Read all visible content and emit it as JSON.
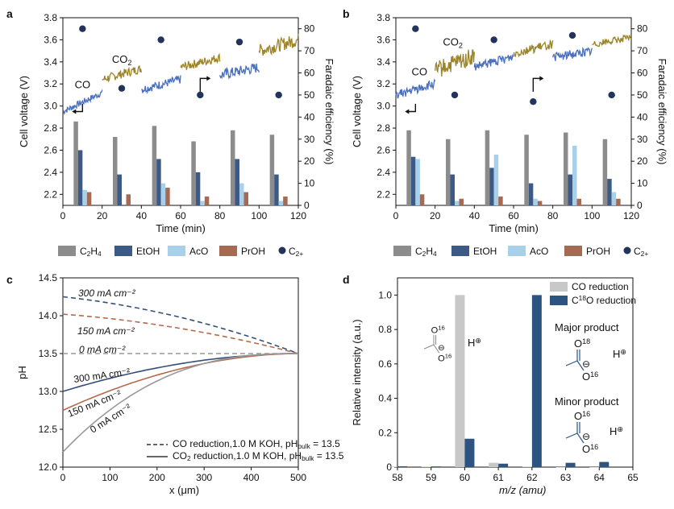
{
  "chart_data": [
    {
      "panel": "a",
      "type": "bar",
      "xlabel": "Time (min)",
      "ylabel": "Cell voltage (V)",
      "y2label": "Faradaic efficiency (%)",
      "xlim": [
        0,
        120
      ],
      "ylim": [
        2.1,
        3.8
      ],
      "y2lim": [
        0,
        85
      ],
      "xticks": [
        "0",
        "20",
        "40",
        "60",
        "80",
        "100",
        "120"
      ],
      "yticks": [
        "2.2",
        "2.4",
        "2.6",
        "2.8",
        "3.0",
        "3.2",
        "3.4",
        "3.6",
        "3.8"
      ],
      "y2ticks": [
        "0",
        "10",
        "20",
        "30",
        "40",
        "50",
        "60",
        "70",
        "80"
      ],
      "annotations": [
        "CO",
        "CO",
        "2"
      ],
      "line_segments": [
        {
          "gas": "CO",
          "color": "#4a6fbd",
          "x_start": 0,
          "x_end": 20,
          "y_start": 2.95,
          "y_end": 3.12,
          "noise": 0.03
        },
        {
          "gas": "CO2",
          "color": "#9c8427",
          "x_start": 20,
          "x_end": 40,
          "y_start": 3.24,
          "y_end": 3.34,
          "noise": 0.04
        },
        {
          "gas": "CO",
          "color": "#4a6fbd",
          "x_start": 40,
          "x_end": 60,
          "y_start": 3.15,
          "y_end": 3.24,
          "noise": 0.04
        },
        {
          "gas": "CO2",
          "color": "#9c8427",
          "x_start": 60,
          "x_end": 80,
          "y_start": 3.35,
          "y_end": 3.44,
          "noise": 0.04
        },
        {
          "gas": "CO",
          "color": "#4a6fbd",
          "x_start": 80,
          "x_end": 100,
          "y_start": 3.28,
          "y_end": 3.35,
          "noise": 0.05
        },
        {
          "gas": "CO2",
          "color": "#9c8427",
          "x_start": 100,
          "x_end": 120,
          "y_start": 3.5,
          "y_end": 3.6,
          "noise": 0.06
        }
      ],
      "bar_groups": [
        {
          "x": 10,
          "C2H4": 38,
          "EtOH": 25,
          "AcO": 7,
          "PrOH": 6
        },
        {
          "x": 30,
          "C2H4": 31,
          "EtOH": 14,
          "AcO": 0,
          "PrOH": 5
        },
        {
          "x": 50,
          "C2H4": 36,
          "EtOH": 21,
          "AcO": 10,
          "PrOH": 8
        },
        {
          "x": 70,
          "C2H4": 29,
          "EtOH": 15,
          "AcO": 2,
          "PrOH": 4
        },
        {
          "x": 90,
          "C2H4": 34,
          "EtOH": 21,
          "AcO": 10,
          "PrOH": 6
        },
        {
          "x": 110,
          "C2H4": 32,
          "EtOH": 14,
          "AcO": 2,
          "PrOH": 4
        }
      ],
      "c2plus_fe": [
        {
          "x": 10,
          "y": 80
        },
        {
          "x": 30,
          "y": 53
        },
        {
          "x": 50,
          "y": 75
        },
        {
          "x": 70,
          "y": 50
        },
        {
          "x": 90,
          "y": 74
        },
        {
          "x": 110,
          "y": 50
        }
      ]
    },
    {
      "panel": "b",
      "type": "bar",
      "xlabel": "Time (min)",
      "ylabel": "Cell voltage (V)",
      "y2label": "Faradaic efficiency (%)",
      "xlim": [
        0,
        120
      ],
      "ylim": [
        2.1,
        3.8
      ],
      "y2lim": [
        0,
        85
      ],
      "xticks": [
        "0",
        "20",
        "40",
        "60",
        "80",
        "100",
        "120"
      ],
      "yticks": [
        "2.2",
        "2.4",
        "2.6",
        "2.8",
        "3.0",
        "3.2",
        "3.4",
        "3.6",
        "3.8"
      ],
      "y2ticks": [
        "0",
        "10",
        "20",
        "30",
        "40",
        "50",
        "60",
        "70",
        "80"
      ],
      "annotations": [
        "CO",
        "CO",
        "2"
      ],
      "line_segments": [
        {
          "gas": "CO",
          "color": "#4a6fbd",
          "x_start": 0,
          "x_end": 20,
          "y_start": 3.1,
          "y_end": 3.2,
          "noise": 0.04
        },
        {
          "gas": "CO2",
          "color": "#9c8427",
          "x_start": 20,
          "x_end": 40,
          "y_start": 3.32,
          "y_end": 3.45,
          "noise": 0.08
        },
        {
          "gas": "CO",
          "color": "#4a6fbd",
          "x_start": 40,
          "x_end": 60,
          "y_start": 3.35,
          "y_end": 3.45,
          "noise": 0.04
        },
        {
          "gas": "CO2",
          "color": "#9c8427",
          "x_start": 60,
          "x_end": 80,
          "y_start": 3.48,
          "y_end": 3.56,
          "noise": 0.04
        },
        {
          "gas": "CO",
          "color": "#4a6fbd",
          "x_start": 80,
          "x_end": 100,
          "y_start": 3.44,
          "y_end": 3.5,
          "noise": 0.04
        },
        {
          "gas": "CO2",
          "color": "#9c8427",
          "x_start": 100,
          "x_end": 120,
          "y_start": 3.56,
          "y_end": 3.62,
          "noise": 0.03
        }
      ],
      "bar_groups": [
        {
          "x": 10,
          "C2H4": 34,
          "EtOH": 22,
          "AcO": 21,
          "PrOH": 5
        },
        {
          "x": 30,
          "C2H4": 30,
          "EtOH": 14,
          "AcO": 2,
          "PrOH": 3
        },
        {
          "x": 50,
          "C2H4": 34,
          "EtOH": 17,
          "AcO": 23,
          "PrOH": 4
        },
        {
          "x": 70,
          "C2H4": 32,
          "EtOH": 10,
          "AcO": 3,
          "PrOH": 2
        },
        {
          "x": 90,
          "C2H4": 33,
          "EtOH": 14,
          "AcO": 27,
          "PrOH": 3
        },
        {
          "x": 110,
          "C2H4": 30,
          "EtOH": 12,
          "AcO": 6,
          "PrOH": 3
        }
      ],
      "c2plus_fe": [
        {
          "x": 10,
          "y": 80
        },
        {
          "x": 30,
          "y": 50
        },
        {
          "x": 50,
          "y": 75
        },
        {
          "x": 70,
          "y": 47
        },
        {
          "x": 90,
          "y": 77
        },
        {
          "x": 110,
          "y": 50
        }
      ]
    },
    {
      "panel": "c",
      "type": "line",
      "xlabel": "x (μm)",
      "ylabel": "pH",
      "xlim": [
        0,
        500
      ],
      "ylim": [
        12.0,
        14.5
      ],
      "xticks": [
        "0",
        "100",
        "200",
        "300",
        "400",
        "500"
      ],
      "yticks": [
        "12.0",
        "12.5",
        "13.0",
        "13.5",
        "14.0",
        "14.5"
      ],
      "series": [
        {
          "name": "300 mA cm⁻² CO",
          "style": "dashed",
          "color": "#34507a",
          "y0": 14.25,
          "y_end": 13.5,
          "shape": "concave"
        },
        {
          "name": "150 mA cm⁻² CO",
          "style": "dashed",
          "color": "#b36a4d",
          "y0": 14.02,
          "y_end": 13.5,
          "shape": "concave"
        },
        {
          "name": "0 mA cm⁻² CO",
          "style": "dashed",
          "color": "#999999",
          "y0": 13.5,
          "y_end": 13.5,
          "shape": "flat"
        },
        {
          "name": "300 mA cm⁻² CO2",
          "style": "solid",
          "color": "#34507a",
          "y0": 13.0,
          "y_end": 13.5,
          "shape": "convex"
        },
        {
          "name": "150 mA cm⁻² CO2",
          "style": "solid",
          "color": "#b36a4d",
          "y0": 12.75,
          "y_end": 13.5,
          "shape": "convex"
        },
        {
          "name": "0 mA cm⁻² CO2",
          "style": "solid",
          "color": "#999999",
          "y0": 12.2,
          "y_end": 13.5,
          "shape": "convex"
        }
      ],
      "labels": {
        "l300": "300 mA cm⁻²",
        "l150": "150 mA cm⁻²",
        "l0": "0 mA cm⁻²"
      },
      "legend": [
        {
          "style": "dashed",
          "text": "CO reduction,1.0 M KOH, pH",
          "sub": "bulk",
          "tail": " = 13.5"
        },
        {
          "style": "solid",
          "text": "CO",
          "sub": "2",
          "text2": " reduction,1.0 M KOH, pH",
          "sub2": "bulk",
          "tail": " = 13.5"
        }
      ]
    },
    {
      "panel": "d",
      "type": "bar",
      "xlabel": "m/z (amu)",
      "ylabel": "Relative intensity (a.u.)",
      "xlim": [
        58,
        65
      ],
      "ylim": [
        0,
        1.1
      ],
      "xticks": [
        "58",
        "59",
        "60",
        "61",
        "62",
        "63",
        "64",
        "65"
      ],
      "yticks": [
        "0",
        "0.2",
        "0.4",
        "0.6",
        "0.8",
        "1.0"
      ],
      "categories": [
        58,
        59,
        60,
        61,
        62,
        63,
        64
      ],
      "series": [
        {
          "name": "CO reduction",
          "color": "#c8c8c8",
          "values": [
            0.003,
            0.003,
            1.0,
            0.025,
            0.003,
            0.0,
            0.0
          ]
        },
        {
          "name": "C18O reduction",
          "color": "#2d5480",
          "values": [
            0.005,
            0.004,
            0.165,
            0.02,
            1.0,
            0.025,
            0.03
          ]
        }
      ],
      "legend_co": "CO reduction",
      "legend_c18o": [
        "C",
        "18",
        "O reduction"
      ],
      "annot_major": "Major product",
      "annot_minor": "Minor product",
      "mol_o16": "O",
      "mol_o18": "O",
      "mol_16": "16",
      "mol_18": "18",
      "mol_h": "H",
      "mol_minus": "⊖",
      "mol_plus": "⊕"
    }
  ],
  "legend_ab": [
    "C2H4",
    "EtOH",
    "AcO",
    "PrOH",
    "C2+"
  ],
  "colors": {
    "c2h4": "#8c8c8c",
    "etoh": "#3c5a85",
    "aco": "#a8d0ea",
    "proh": "#a66a52",
    "dot": "#22345a",
    "co": "#4a6fbd",
    "co2": "#9c8427"
  }
}
